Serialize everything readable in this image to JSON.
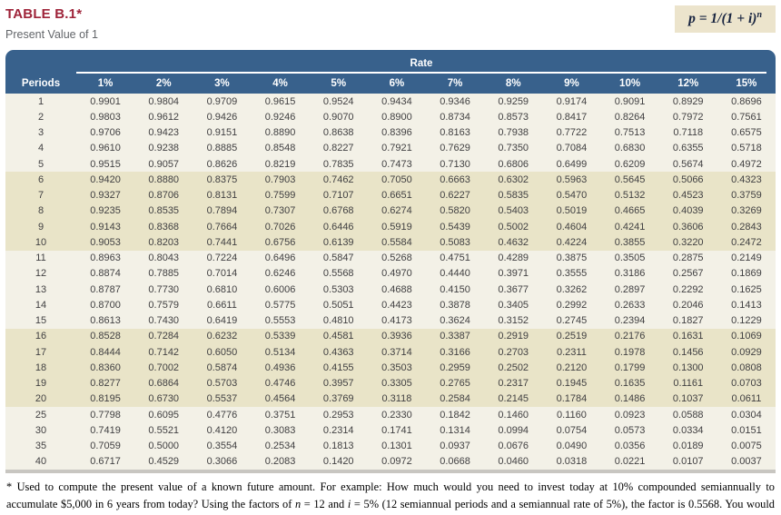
{
  "header": {
    "title": "TABLE B.1*",
    "subtitle": "Present Value of 1",
    "formula_main": "p = 1/(1 + i)",
    "formula_exp": "n"
  },
  "table": {
    "rate_label": "Rate",
    "periods_label": "Periods",
    "rate_headers": [
      "1%",
      "2%",
      "3%",
      "4%",
      "5%",
      "6%",
      "7%",
      "8%",
      "9%",
      "10%",
      "12%",
      "15%"
    ],
    "rows": [
      {
        "period": "1",
        "values": [
          "0.9901",
          "0.9804",
          "0.9709",
          "0.9615",
          "0.9524",
          "0.9434",
          "0.9346",
          "0.9259",
          "0.9174",
          "0.9091",
          "0.8929",
          "0.8696"
        ]
      },
      {
        "period": "2",
        "values": [
          "0.9803",
          "0.9612",
          "0.9426",
          "0.9246",
          "0.9070",
          "0.8900",
          "0.8734",
          "0.8573",
          "0.8417",
          "0.8264",
          "0.7972",
          "0.7561"
        ]
      },
      {
        "period": "3",
        "values": [
          "0.9706",
          "0.9423",
          "0.9151",
          "0.8890",
          "0.8638",
          "0.8396",
          "0.8163",
          "0.7938",
          "0.7722",
          "0.7513",
          "0.7118",
          "0.6575"
        ]
      },
      {
        "period": "4",
        "values": [
          "0.9610",
          "0.9238",
          "0.8885",
          "0.8548",
          "0.8227",
          "0.7921",
          "0.7629",
          "0.7350",
          "0.7084",
          "0.6830",
          "0.6355",
          "0.5718"
        ]
      },
      {
        "period": "5",
        "values": [
          "0.9515",
          "0.9057",
          "0.8626",
          "0.8219",
          "0.7835",
          "0.7473",
          "0.7130",
          "0.6806",
          "0.6499",
          "0.6209",
          "0.5674",
          "0.4972"
        ]
      },
      {
        "period": "6",
        "values": [
          "0.9420",
          "0.8880",
          "0.8375",
          "0.7903",
          "0.7462",
          "0.7050",
          "0.6663",
          "0.6302",
          "0.5963",
          "0.5645",
          "0.5066",
          "0.4323"
        ]
      },
      {
        "period": "7",
        "values": [
          "0.9327",
          "0.8706",
          "0.8131",
          "0.7599",
          "0.7107",
          "0.6651",
          "0.6227",
          "0.5835",
          "0.5470",
          "0.5132",
          "0.4523",
          "0.3759"
        ]
      },
      {
        "period": "8",
        "values": [
          "0.9235",
          "0.8535",
          "0.7894",
          "0.7307",
          "0.6768",
          "0.6274",
          "0.5820",
          "0.5403",
          "0.5019",
          "0.4665",
          "0.4039",
          "0.3269"
        ]
      },
      {
        "period": "9",
        "values": [
          "0.9143",
          "0.8368",
          "0.7664",
          "0.7026",
          "0.6446",
          "0.5919",
          "0.5439",
          "0.5002",
          "0.4604",
          "0.4241",
          "0.3606",
          "0.2843"
        ]
      },
      {
        "period": "10",
        "values": [
          "0.9053",
          "0.8203",
          "0.7441",
          "0.6756",
          "0.6139",
          "0.5584",
          "0.5083",
          "0.4632",
          "0.4224",
          "0.3855",
          "0.3220",
          "0.2472"
        ]
      },
      {
        "period": "11",
        "values": [
          "0.8963",
          "0.8043",
          "0.7224",
          "0.6496",
          "0.5847",
          "0.5268",
          "0.4751",
          "0.4289",
          "0.3875",
          "0.3505",
          "0.2875",
          "0.2149"
        ]
      },
      {
        "period": "12",
        "values": [
          "0.8874",
          "0.7885",
          "0.7014",
          "0.6246",
          "0.5568",
          "0.4970",
          "0.4440",
          "0.3971",
          "0.3555",
          "0.3186",
          "0.2567",
          "0.1869"
        ]
      },
      {
        "period": "13",
        "values": [
          "0.8787",
          "0.7730",
          "0.6810",
          "0.6006",
          "0.5303",
          "0.4688",
          "0.4150",
          "0.3677",
          "0.3262",
          "0.2897",
          "0.2292",
          "0.1625"
        ]
      },
      {
        "period": "14",
        "values": [
          "0.8700",
          "0.7579",
          "0.6611",
          "0.5775",
          "0.5051",
          "0.4423",
          "0.3878",
          "0.3405",
          "0.2992",
          "0.2633",
          "0.2046",
          "0.1413"
        ]
      },
      {
        "period": "15",
        "values": [
          "0.8613",
          "0.7430",
          "0.6419",
          "0.5553",
          "0.4810",
          "0.4173",
          "0.3624",
          "0.3152",
          "0.2745",
          "0.2394",
          "0.1827",
          "0.1229"
        ]
      },
      {
        "period": "16",
        "values": [
          "0.8528",
          "0.7284",
          "0.6232",
          "0.5339",
          "0.4581",
          "0.3936",
          "0.3387",
          "0.2919",
          "0.2519",
          "0.2176",
          "0.1631",
          "0.1069"
        ]
      },
      {
        "period": "17",
        "values": [
          "0.8444",
          "0.7142",
          "0.6050",
          "0.5134",
          "0.4363",
          "0.3714",
          "0.3166",
          "0.2703",
          "0.2311",
          "0.1978",
          "0.1456",
          "0.0929"
        ]
      },
      {
        "period": "18",
        "values": [
          "0.8360",
          "0.7002",
          "0.5874",
          "0.4936",
          "0.4155",
          "0.3503",
          "0.2959",
          "0.2502",
          "0.2120",
          "0.1799",
          "0.1300",
          "0.0808"
        ]
      },
      {
        "period": "19",
        "values": [
          "0.8277",
          "0.6864",
          "0.5703",
          "0.4746",
          "0.3957",
          "0.3305",
          "0.2765",
          "0.2317",
          "0.1945",
          "0.1635",
          "0.1161",
          "0.0703"
        ]
      },
      {
        "period": "20",
        "values": [
          "0.8195",
          "0.6730",
          "0.5537",
          "0.4564",
          "0.3769",
          "0.3118",
          "0.2584",
          "0.2145",
          "0.1784",
          "0.1486",
          "0.1037",
          "0.0611"
        ]
      },
      {
        "period": "25",
        "values": [
          "0.7798",
          "0.6095",
          "0.4776",
          "0.3751",
          "0.2953",
          "0.2330",
          "0.1842",
          "0.1460",
          "0.1160",
          "0.0923",
          "0.0588",
          "0.0304"
        ]
      },
      {
        "period": "30",
        "values": [
          "0.7419",
          "0.5521",
          "0.4120",
          "0.3083",
          "0.2314",
          "0.1741",
          "0.1314",
          "0.0994",
          "0.0754",
          "0.0573",
          "0.0334",
          "0.0151"
        ]
      },
      {
        "period": "35",
        "values": [
          "0.7059",
          "0.5000",
          "0.3554",
          "0.2534",
          "0.1813",
          "0.1301",
          "0.0937",
          "0.0676",
          "0.0490",
          "0.0356",
          "0.0189",
          "0.0075"
        ]
      },
      {
        "period": "40",
        "values": [
          "0.6717",
          "0.4529",
          "0.3066",
          "0.2083",
          "0.1420",
          "0.0972",
          "0.0668",
          "0.0460",
          "0.0318",
          "0.0221",
          "0.0107",
          "0.0037"
        ]
      }
    ]
  },
  "footnote": {
    "part1": "* Used to compute the present value of a known future amount. For example: How much would you need to invest today at 10% compounded semiannually to accumulate $5,000 in 6 years from today? Using the factors of ",
    "n_var": "n",
    "part2": " = 12 and ",
    "i_var": "i",
    "part3": " = 5% (12 semiannual periods and a semiannual rate of 5%), the factor is 0.5568. You would need to invest $2,784 today ($5,000 × 0.5568)."
  },
  "colors": {
    "header_blue": "#38618C",
    "title_red": "#9E2339",
    "band_beige": "#E9E4C8",
    "band_light": "#F3F1E7",
    "formula_bg": "#ECE4CC"
  }
}
